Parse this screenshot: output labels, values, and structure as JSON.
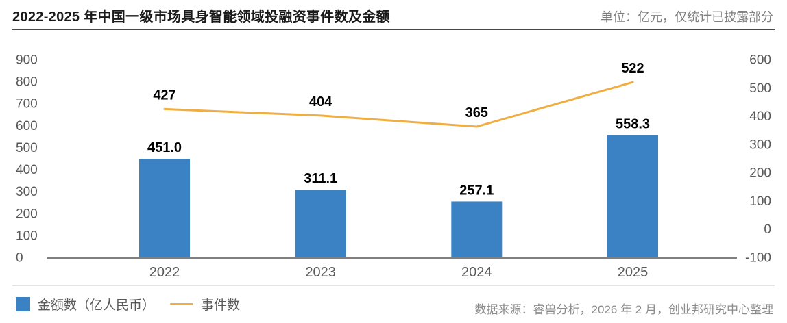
{
  "header": {
    "title": "2022-2025 年中国一级市场具身智能领域投融资事件数及金额",
    "unit_note": "单位：亿元，仅统计已披露部分"
  },
  "chart_data": {
    "type": "combo",
    "title": "2022-2025 年中国一级市场具身智能领域投融资事件数及金额",
    "categories": [
      "2022",
      "2023",
      "2024",
      "2025"
    ],
    "series": [
      {
        "name": "金额数（亿人民币）",
        "type": "bar",
        "axis": "left",
        "values": [
          451.0,
          311.1,
          257.1,
          558.3
        ],
        "labels": [
          "451.0",
          "311.1",
          "257.1",
          "558.3"
        ],
        "color": "#3b82c4"
      },
      {
        "name": "事件数",
        "type": "line",
        "axis": "right",
        "values": [
          427,
          404,
          365,
          522
        ],
        "labels": [
          "427",
          "404",
          "365",
          "522"
        ],
        "color": "#f0ae42"
      }
    ],
    "left_axis": {
      "ticks": [
        900,
        800,
        700,
        600,
        500,
        400,
        300,
        200,
        100,
        0
      ],
      "range": [
        0,
        900
      ]
    },
    "right_axis": {
      "ticks": [
        600,
        500,
        400,
        300,
        200,
        100,
        0,
        -100
      ],
      "range": [
        -100,
        600
      ]
    },
    "grid": false,
    "legend_position": "bottom-left",
    "label_color": "#000000",
    "tick_color": "#595959",
    "axis_line_color": "#808080"
  },
  "legend": {
    "bar_label": "金额数（亿人民币）",
    "line_label": "事件数"
  },
  "footer": {
    "source": "数据来源：睿兽分析，2026 年 2 月，创业邦研究中心整理"
  }
}
